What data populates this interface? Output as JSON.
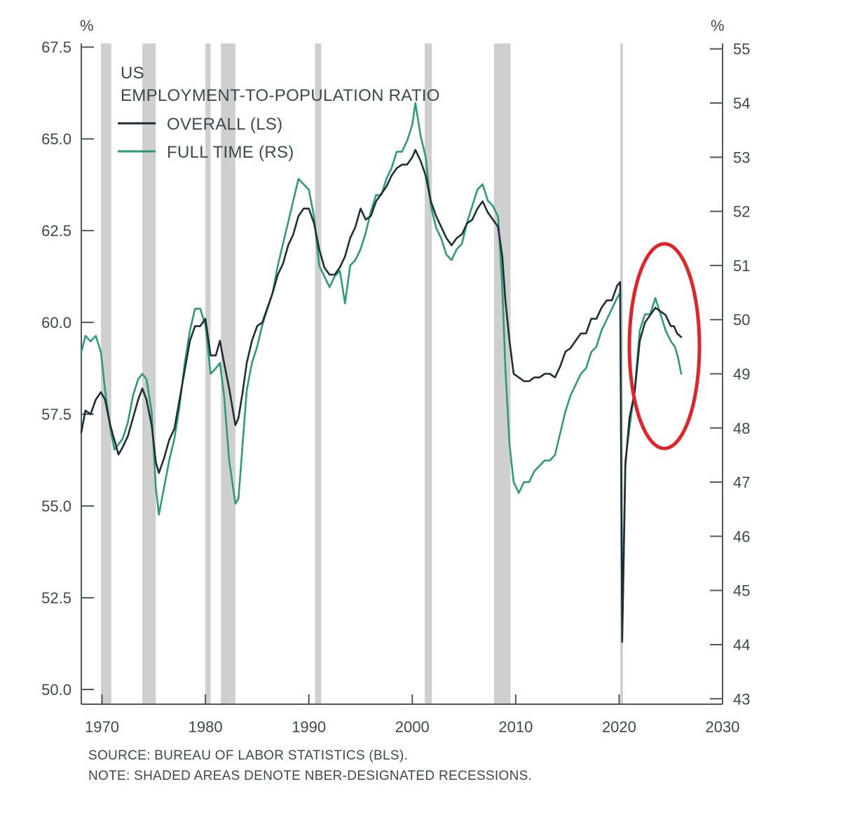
{
  "chart_data": {
    "type": "line",
    "title": "US",
    "subtitle": "EMPLOYMENT-TO-POPULATION RATIO",
    "left_unit": "%",
    "right_unit": "%",
    "xlim": [
      1968,
      2030
    ],
    "xticks": [
      1970,
      1980,
      1990,
      2000,
      2010,
      2020,
      2030
    ],
    "ylim_left": [
      49.6,
      67.6
    ],
    "ylim_right": [
      42.9,
      55.1
    ],
    "yticks_left": [
      "67.5",
      "65.0",
      "62.5",
      "60.0",
      "57.5",
      "55.0",
      "52.5",
      "50.0"
    ],
    "yticks_right": [
      "55",
      "54",
      "53",
      "52",
      "51",
      "50",
      "49",
      "48",
      "47",
      "46",
      "45",
      "44",
      "43"
    ],
    "legend_placement": "top-left",
    "recessions": [
      [
        1969.9,
        1970.9
      ],
      [
        1973.9,
        1975.2
      ],
      [
        1980.0,
        1980.5
      ],
      [
        1981.5,
        1982.9
      ],
      [
        1990.6,
        1991.2
      ],
      [
        2001.2,
        2001.9
      ],
      [
        2007.9,
        2009.5
      ],
      [
        2020.1,
        2020.3
      ]
    ],
    "series": [
      {
        "name": "OVERALL (LS)",
        "axis": "left",
        "color": "#1e2e36",
        "points": [
          [
            1968.0,
            57.0
          ],
          [
            1968.4,
            57.6
          ],
          [
            1968.9,
            57.5
          ],
          [
            1969.4,
            57.9
          ],
          [
            1969.9,
            58.1
          ],
          [
            1970.3,
            57.9
          ],
          [
            1970.8,
            57.2
          ],
          [
            1971.2,
            56.8
          ],
          [
            1971.6,
            56.4
          ],
          [
            1972.0,
            56.6
          ],
          [
            1972.5,
            56.9
          ],
          [
            1973.0,
            57.4
          ],
          [
            1973.5,
            57.9
          ],
          [
            1973.9,
            58.2
          ],
          [
            1974.3,
            57.9
          ],
          [
            1974.8,
            57.2
          ],
          [
            1975.2,
            56.2
          ],
          [
            1975.5,
            55.9
          ],
          [
            1976.0,
            56.3
          ],
          [
            1976.5,
            56.8
          ],
          [
            1977.0,
            57.1
          ],
          [
            1977.5,
            57.9
          ],
          [
            1978.0,
            58.7
          ],
          [
            1978.5,
            59.5
          ],
          [
            1979.0,
            59.9
          ],
          [
            1979.5,
            59.9
          ],
          [
            1980.0,
            60.1
          ],
          [
            1980.5,
            59.1
          ],
          [
            1981.0,
            59.1
          ],
          [
            1981.4,
            59.5
          ],
          [
            1981.8,
            58.9
          ],
          [
            1982.3,
            58.2
          ],
          [
            1982.9,
            57.2
          ],
          [
            1983.2,
            57.4
          ],
          [
            1983.6,
            58.1
          ],
          [
            1984.0,
            58.9
          ],
          [
            1984.5,
            59.5
          ],
          [
            1985.0,
            59.9
          ],
          [
            1985.5,
            60.0
          ],
          [
            1986.0,
            60.4
          ],
          [
            1986.5,
            60.8
          ],
          [
            1987.0,
            61.3
          ],
          [
            1987.5,
            61.6
          ],
          [
            1988.0,
            62.1
          ],
          [
            1988.5,
            62.4
          ],
          [
            1989.0,
            62.9
          ],
          [
            1989.5,
            63.1
          ],
          [
            1990.0,
            63.1
          ],
          [
            1990.5,
            62.7
          ],
          [
            1991.0,
            62.0
          ],
          [
            1991.5,
            61.5
          ],
          [
            1992.0,
            61.3
          ],
          [
            1992.5,
            61.3
          ],
          [
            1993.0,
            61.5
          ],
          [
            1993.5,
            61.8
          ],
          [
            1994.0,
            62.3
          ],
          [
            1994.5,
            62.6
          ],
          [
            1995.0,
            63.1
          ],
          [
            1995.5,
            62.8
          ],
          [
            1996.0,
            62.9
          ],
          [
            1996.5,
            63.3
          ],
          [
            1997.0,
            63.5
          ],
          [
            1997.5,
            63.7
          ],
          [
            1998.0,
            64.0
          ],
          [
            1998.5,
            64.2
          ],
          [
            1999.0,
            64.3
          ],
          [
            1999.5,
            64.3
          ],
          [
            2000.0,
            64.5
          ],
          [
            2000.3,
            64.7
          ],
          [
            2000.8,
            64.4
          ],
          [
            2001.3,
            64.0
          ],
          [
            2001.8,
            63.3
          ],
          [
            2002.3,
            62.9
          ],
          [
            2002.8,
            62.6
          ],
          [
            2003.3,
            62.3
          ],
          [
            2003.8,
            62.1
          ],
          [
            2004.3,
            62.3
          ],
          [
            2004.8,
            62.4
          ],
          [
            2005.3,
            62.7
          ],
          [
            2005.8,
            62.8
          ],
          [
            2006.3,
            63.1
          ],
          [
            2006.8,
            63.3
          ],
          [
            2007.3,
            63.0
          ],
          [
            2007.8,
            62.8
          ],
          [
            2008.3,
            62.6
          ],
          [
            2008.7,
            61.8
          ],
          [
            2009.0,
            60.6
          ],
          [
            2009.4,
            59.5
          ],
          [
            2009.8,
            58.6
          ],
          [
            2010.3,
            58.5
          ],
          [
            2010.8,
            58.4
          ],
          [
            2011.3,
            58.4
          ],
          [
            2011.8,
            58.5
          ],
          [
            2012.3,
            58.5
          ],
          [
            2012.8,
            58.6
          ],
          [
            2013.3,
            58.6
          ],
          [
            2013.8,
            58.5
          ],
          [
            2014.3,
            58.8
          ],
          [
            2014.8,
            59.2
          ],
          [
            2015.3,
            59.3
          ],
          [
            2015.8,
            59.5
          ],
          [
            2016.3,
            59.7
          ],
          [
            2016.8,
            59.7
          ],
          [
            2017.3,
            60.1
          ],
          [
            2017.8,
            60.1
          ],
          [
            2018.3,
            60.4
          ],
          [
            2018.8,
            60.6
          ],
          [
            2019.3,
            60.6
          ],
          [
            2019.8,
            61.0
          ],
          [
            2020.1,
            61.1
          ],
          [
            2020.3,
            51.3
          ],
          [
            2020.6,
            56.1
          ],
          [
            2021.0,
            57.4
          ],
          [
            2021.5,
            58.1
          ],
          [
            2022.0,
            59.5
          ],
          [
            2022.5,
            60.0
          ],
          [
            2023.0,
            60.2
          ],
          [
            2023.5,
            60.4
          ],
          [
            2024.0,
            60.3
          ],
          [
            2024.5,
            60.2
          ],
          [
            2025.0,
            59.9
          ],
          [
            2025.3,
            59.9
          ],
          [
            2025.6,
            59.7
          ],
          [
            2026.0,
            59.6
          ]
        ]
      },
      {
        "name": "FULL TIME (RS)",
        "axis": "right",
        "color": "#2e9a78",
        "points": [
          [
            1968.0,
            49.4
          ],
          [
            1968.4,
            49.7
          ],
          [
            1968.9,
            49.6
          ],
          [
            1969.4,
            49.7
          ],
          [
            1969.9,
            49.4
          ],
          [
            1970.3,
            48.7
          ],
          [
            1970.8,
            48.0
          ],
          [
            1971.2,
            47.6
          ],
          [
            1971.6,
            47.7
          ],
          [
            1972.0,
            47.8
          ],
          [
            1972.5,
            48.1
          ],
          [
            1973.0,
            48.6
          ],
          [
            1973.5,
            48.9
          ],
          [
            1973.9,
            49.0
          ],
          [
            1974.3,
            48.9
          ],
          [
            1974.8,
            48.3
          ],
          [
            1975.2,
            46.9
          ],
          [
            1975.5,
            46.4
          ],
          [
            1976.0,
            46.9
          ],
          [
            1976.5,
            47.4
          ],
          [
            1977.0,
            47.8
          ],
          [
            1977.5,
            48.4
          ],
          [
            1978.0,
            49.2
          ],
          [
            1978.5,
            49.8
          ],
          [
            1979.0,
            50.2
          ],
          [
            1979.5,
            50.2
          ],
          [
            1980.0,
            49.9
          ],
          [
            1980.5,
            49.0
          ],
          [
            1981.0,
            49.1
          ],
          [
            1981.4,
            49.2
          ],
          [
            1981.8,
            48.6
          ],
          [
            1982.3,
            47.4
          ],
          [
            1982.9,
            46.6
          ],
          [
            1983.2,
            46.7
          ],
          [
            1983.6,
            47.7
          ],
          [
            1984.0,
            48.7
          ],
          [
            1984.5,
            49.2
          ],
          [
            1985.0,
            49.5
          ],
          [
            1985.5,
            49.9
          ],
          [
            1986.0,
            50.2
          ],
          [
            1986.5,
            50.5
          ],
          [
            1987.0,
            51.0
          ],
          [
            1987.5,
            51.4
          ],
          [
            1988.0,
            51.8
          ],
          [
            1988.5,
            52.2
          ],
          [
            1989.0,
            52.6
          ],
          [
            1989.5,
            52.5
          ],
          [
            1990.0,
            52.4
          ],
          [
            1990.5,
            51.9
          ],
          [
            1991.0,
            51.0
          ],
          [
            1991.5,
            50.8
          ],
          [
            1992.0,
            50.6
          ],
          [
            1992.5,
            50.8
          ],
          [
            1993.0,
            50.9
          ],
          [
            1993.5,
            50.3
          ],
          [
            1994.0,
            51.0
          ],
          [
            1994.5,
            51.1
          ],
          [
            1995.0,
            51.3
          ],
          [
            1995.5,
            51.6
          ],
          [
            1996.0,
            52.0
          ],
          [
            1996.5,
            52.3
          ],
          [
            1997.0,
            52.3
          ],
          [
            1997.5,
            52.6
          ],
          [
            1998.0,
            52.8
          ],
          [
            1998.5,
            53.1
          ],
          [
            1999.0,
            53.1
          ],
          [
            1999.5,
            53.3
          ],
          [
            2000.0,
            53.6
          ],
          [
            2000.3,
            54.0
          ],
          [
            2000.8,
            53.4
          ],
          [
            2001.3,
            53.0
          ],
          [
            2001.8,
            52.1
          ],
          [
            2002.3,
            51.7
          ],
          [
            2002.8,
            51.5
          ],
          [
            2003.3,
            51.2
          ],
          [
            2003.8,
            51.1
          ],
          [
            2004.3,
            51.3
          ],
          [
            2004.8,
            51.4
          ],
          [
            2005.3,
            51.8
          ],
          [
            2005.8,
            52.1
          ],
          [
            2006.3,
            52.4
          ],
          [
            2006.8,
            52.5
          ],
          [
            2007.3,
            52.2
          ],
          [
            2007.8,
            52.1
          ],
          [
            2008.3,
            51.9
          ],
          [
            2008.7,
            50.6
          ],
          [
            2009.0,
            49.1
          ],
          [
            2009.4,
            47.7
          ],
          [
            2009.8,
            47.0
          ],
          [
            2010.3,
            46.8
          ],
          [
            2010.8,
            47.0
          ],
          [
            2011.3,
            47.0
          ],
          [
            2011.8,
            47.2
          ],
          [
            2012.3,
            47.3
          ],
          [
            2012.8,
            47.4
          ],
          [
            2013.3,
            47.4
          ],
          [
            2013.8,
            47.5
          ],
          [
            2014.3,
            47.9
          ],
          [
            2014.8,
            48.3
          ],
          [
            2015.3,
            48.6
          ],
          [
            2015.8,
            48.8
          ],
          [
            2016.3,
            49.0
          ],
          [
            2016.8,
            49.1
          ],
          [
            2017.3,
            49.4
          ],
          [
            2017.8,
            49.5
          ],
          [
            2018.3,
            49.8
          ],
          [
            2018.8,
            50.0
          ],
          [
            2019.3,
            50.2
          ],
          [
            2019.8,
            50.4
          ],
          [
            2020.1,
            50.5
          ],
          [
            2020.3,
            44.2
          ],
          [
            2020.6,
            47.4
          ],
          [
            2021.0,
            48.0
          ],
          [
            2021.5,
            48.7
          ],
          [
            2022.0,
            49.8
          ],
          [
            2022.5,
            50.1
          ],
          [
            2023.0,
            50.1
          ],
          [
            2023.5,
            50.4
          ],
          [
            2024.0,
            50.1
          ],
          [
            2024.5,
            49.8
          ],
          [
            2025.0,
            49.6
          ],
          [
            2025.4,
            49.5
          ],
          [
            2025.7,
            49.3
          ],
          [
            2026.0,
            49.0
          ]
        ]
      }
    ],
    "annotations": [
      "red ellipse highlighting 2022–2026 decline"
    ]
  },
  "notes": {
    "source": "SOURCE: BUREAU OF LABOR STATISTICS (BLS).",
    "note": "NOTE: SHADED AREAS DENOTE NBER-DESIGNATED RECESSIONS."
  },
  "colors": {
    "axis": "#4a5a5e",
    "recession": "#cfcfcf",
    "highlight": "#e0242a"
  }
}
